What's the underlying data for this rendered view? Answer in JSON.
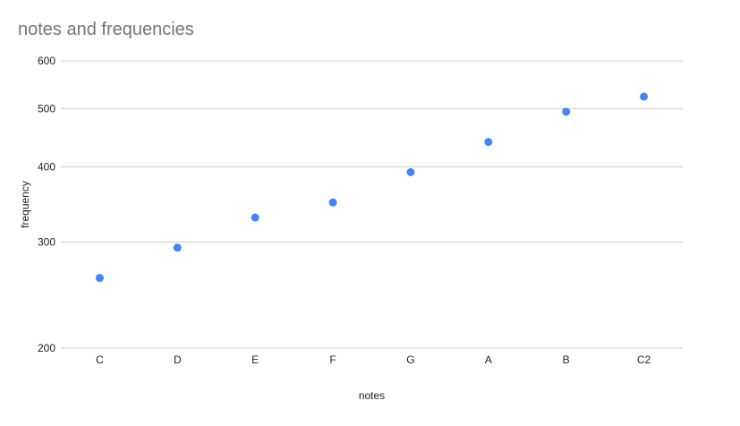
{
  "chart_data": {
    "type": "scatter",
    "title": "notes and frequencies",
    "xlabel": "notes",
    "ylabel": "frequency",
    "categories": [
      "C",
      "D",
      "E",
      "F",
      "G",
      "A",
      "B",
      "C2"
    ],
    "series": [
      {
        "values": [
          261.6,
          293.7,
          329.6,
          349.2,
          392.0,
          440.0,
          493.9,
          523.3
        ]
      }
    ],
    "y_scale": "log",
    "ylim": [
      200,
      600
    ],
    "y_ticks": [
      200,
      300,
      400,
      500,
      600
    ],
    "grid": true,
    "legend": "none",
    "point_color": "#4285f4"
  }
}
